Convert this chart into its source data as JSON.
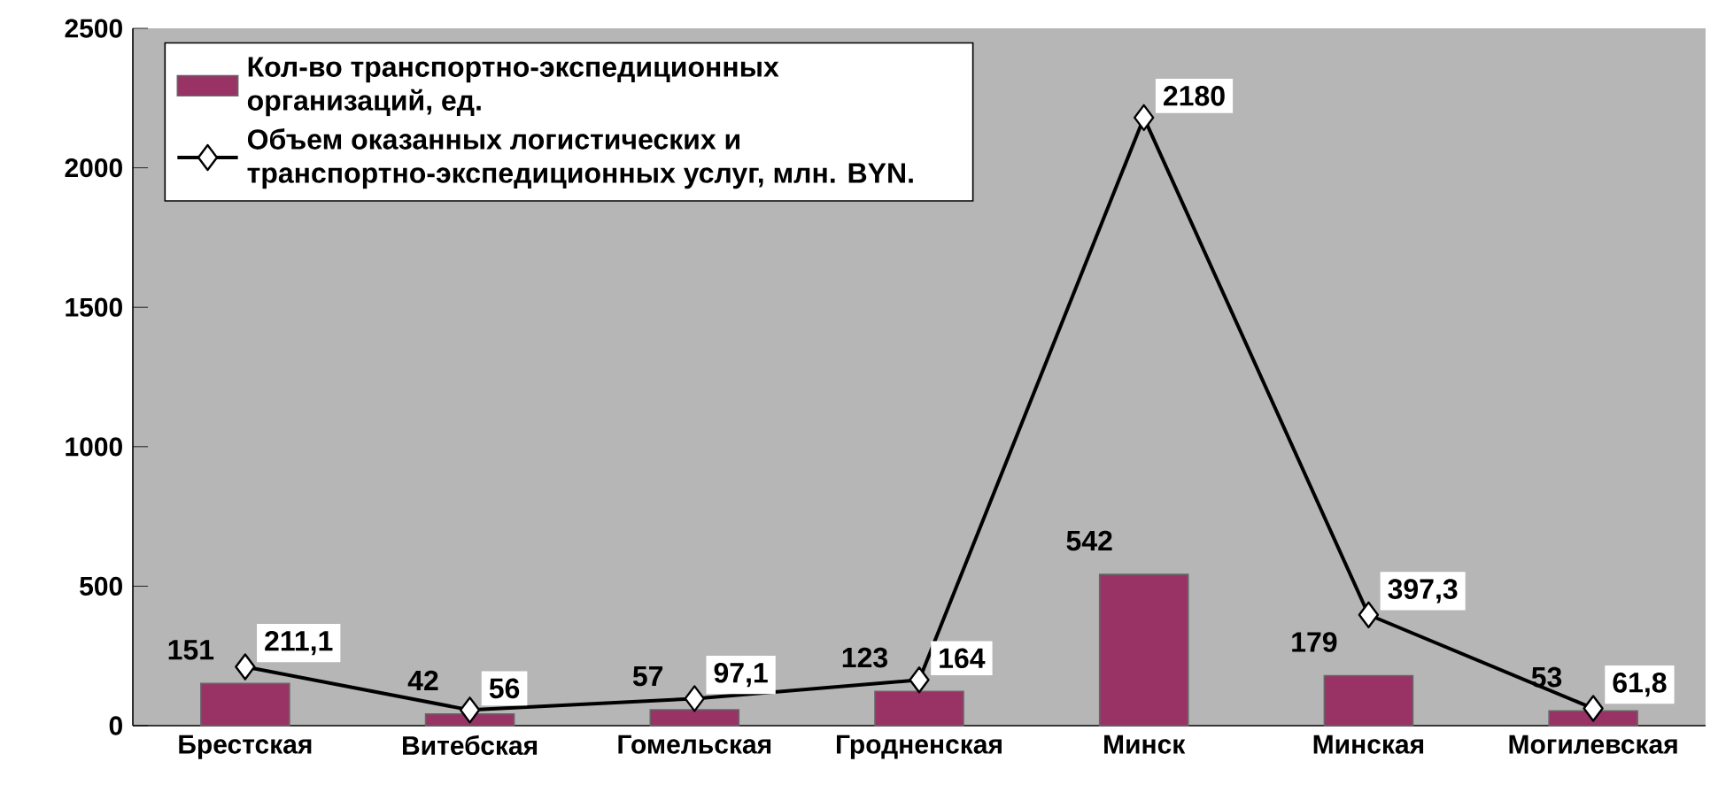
{
  "chart_data": {
    "type": "bar",
    "categories": [
      "Брестская",
      "Витебская",
      "Гомельская",
      "Гродненская",
      "Минск",
      "Минская",
      "Могилевская"
    ],
    "series": [
      {
        "name": "Кол-во транспортно-экспедиционных организаций, ед.",
        "color": "#993366",
        "values": [
          151,
          42,
          57,
          123,
          542,
          179,
          53
        ],
        "value_labels": [
          "151",
          "42",
          "57",
          "123",
          "542",
          "179",
          "53"
        ]
      },
      {
        "name": "Объем оказанных логистических и транспортно-экспедиционных услуг, млн. BYN.",
        "type": "line",
        "color": "#000000",
        "marker": "diamond",
        "line_style": "solid",
        "values": [
          211.1,
          56,
          97.1,
          164,
          2180,
          397.3,
          61.8
        ],
        "value_labels": [
          "211,1",
          "56",
          "97,1",
          "164",
          "2180",
          "397,3",
          "61,8"
        ]
      }
    ],
    "ylim": [
      0,
      2500
    ],
    "yticks": [
      0,
      500,
      1000,
      1500,
      2000,
      2500
    ],
    "grid": false,
    "legend": "top left"
  }
}
